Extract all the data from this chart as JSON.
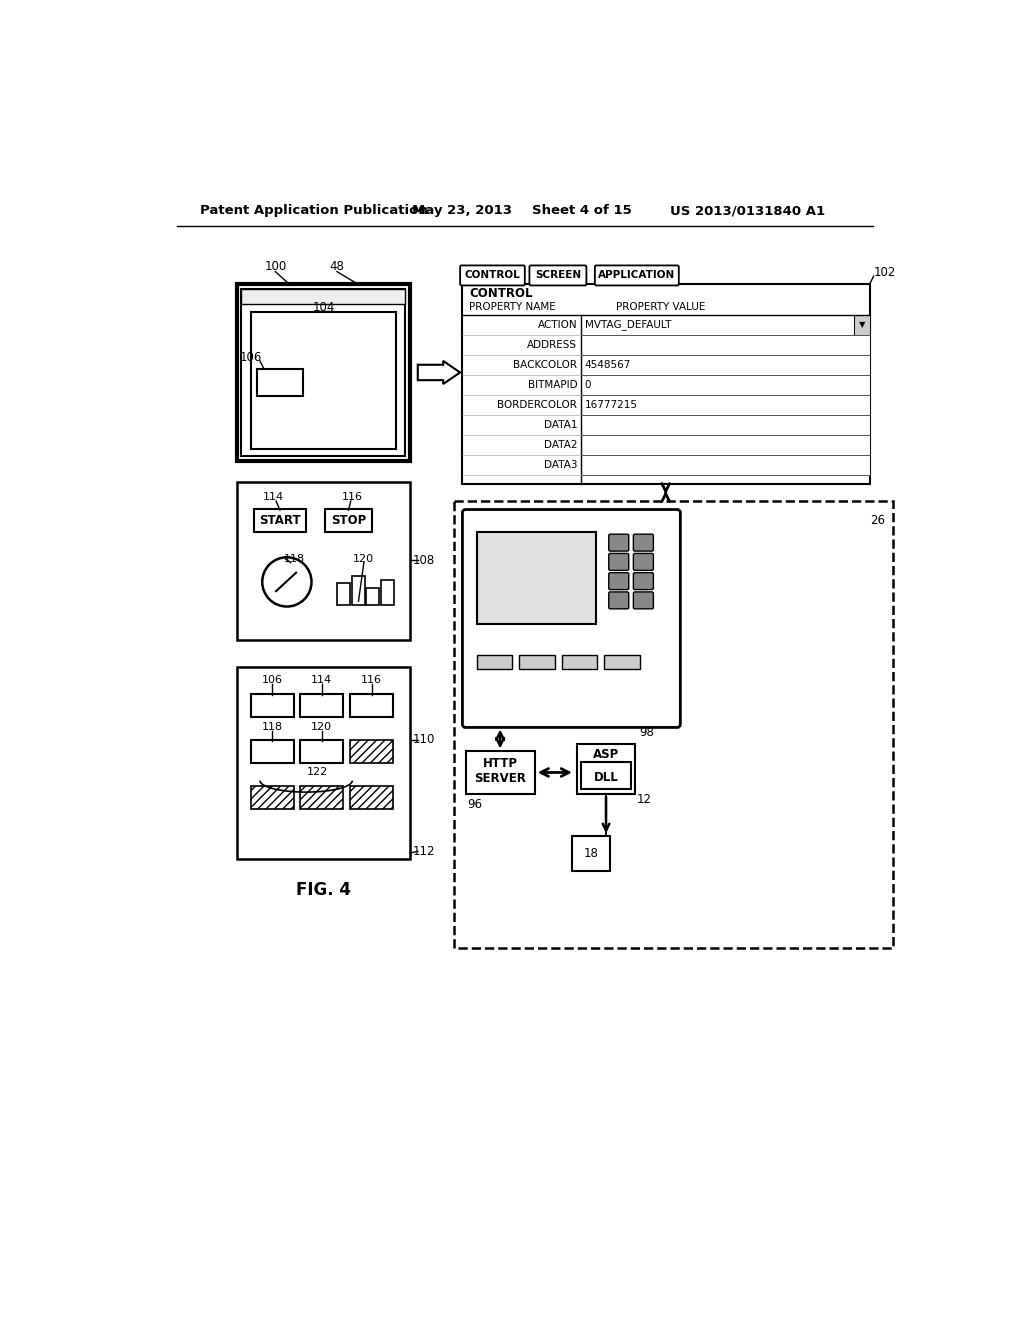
{
  "bg_color": "#ffffff",
  "header_text": "Patent Application Publication",
  "header_date": "May 23, 2013",
  "header_sheet": "Sheet 4 of 15",
  "header_patent": "US 2013/0131840 A1",
  "fig_label": "FIG. 4",
  "properties": [
    [
      "ACTION",
      "MVTAG_DEFAULT",
      true
    ],
    [
      "ADDRESS",
      "",
      false
    ],
    [
      "BACKCOLOR",
      "4548567",
      false
    ],
    [
      "BITMAPID",
      "0",
      false
    ],
    [
      "BORDERCOLOR",
      "16777215",
      false
    ],
    [
      "DATA1",
      "",
      false
    ],
    [
      "DATA2",
      "",
      false
    ],
    [
      "DATA3",
      "",
      false
    ]
  ]
}
